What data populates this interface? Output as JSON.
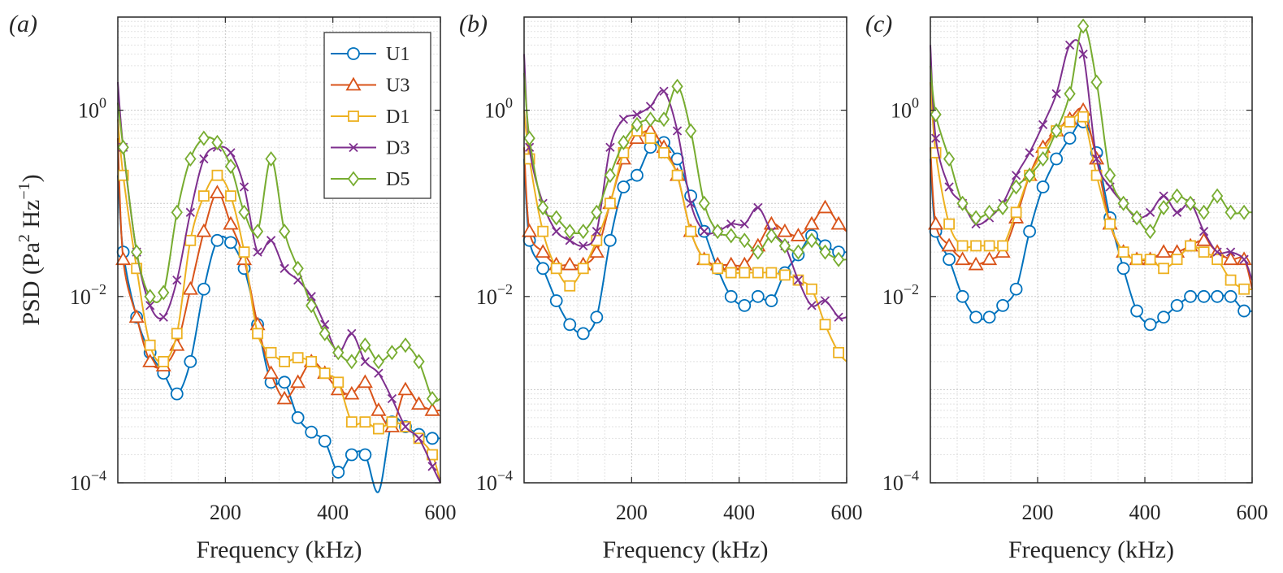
{
  "chart_data": {
    "type": "line",
    "yscale": "log",
    "ylabel": "PSD (Pa² Hz⁻¹)",
    "ylabel_parts": {
      "pre": "PSD (Pa",
      "sup1": "2",
      "mid": " Hz",
      "sup2": "−1",
      "post": ")"
    },
    "legend": [
      "U1",
      "U3",
      "D1",
      "D3",
      "D5"
    ],
    "colors": {
      "U1": "#0072BD",
      "U3": "#D95319",
      "D1": "#EDB120",
      "D3": "#7E2F8E",
      "D5": "#77AC30"
    },
    "markers": {
      "U1": "circle",
      "U3": "triangle",
      "D1": "square",
      "D3": "x",
      "D5": "diamond"
    },
    "x_marker_positions": [
      10,
      35,
      60,
      85,
      110,
      135,
      160,
      185,
      210,
      235,
      260,
      285,
      310,
      335,
      360,
      385,
      410,
      435,
      460,
      485,
      510,
      535,
      560,
      585
    ],
    "panels": [
      {
        "label": "(a)",
        "xlabel": "Frequency (kHz)",
        "xlim": [
          0,
          600
        ],
        "ylim": [
          0.0001,
          10
        ],
        "xticks": [
          "200",
          "400",
          "600"
        ],
        "yticks": [
          {
            "base": "10",
            "exp": "0"
          },
          {
            "base": "10",
            "exp": "−2"
          },
          {
            "base": "10",
            "exp": "−4"
          }
        ],
        "series": [
          {
            "name": "U1",
            "x": [
              0,
              10,
              35,
              60,
              85,
              110,
              135,
              160,
              185,
              210,
              235,
              260,
              285,
              310,
              335,
              360,
              385,
              410,
              435,
              460,
              485,
              510,
              535,
              560,
              585,
              600
            ],
            "y": [
              0.2,
              0.03,
              0.006,
              0.0025,
              0.0015,
              0.0009,
              0.002,
              0.012,
              0.04,
              0.038,
              0.02,
              0.005,
              0.0012,
              0.0012,
              0.0005,
              0.00035,
              0.00028,
              0.00013,
              0.0002,
              0.0002,
              8e-05,
              0.00045,
              0.0004,
              0.00033,
              0.0003,
              0.0003
            ]
          },
          {
            "name": "U3",
            "x": [
              0,
              10,
              35,
              60,
              85,
              110,
              135,
              160,
              185,
              210,
              235,
              260,
              285,
              310,
              335,
              360,
              385,
              410,
              435,
              460,
              485,
              510,
              535,
              560,
              585,
              600
            ],
            "y": [
              0.5,
              0.025,
              0.006,
              0.002,
              0.0018,
              0.003,
              0.012,
              0.05,
              0.13,
              0.06,
              0.025,
              0.005,
              0.0015,
              0.0008,
              0.0012,
              0.002,
              0.0015,
              0.001,
              0.0009,
              0.0012,
              0.0006,
              0.0004,
              0.001,
              0.0007,
              0.0006,
              0.0006
            ]
          },
          {
            "name": "D1",
            "x": [
              0,
              10,
              35,
              60,
              85,
              110,
              135,
              160,
              185,
              210,
              235,
              260,
              285,
              310,
              335,
              360,
              385,
              410,
              435,
              460,
              485,
              510,
              535,
              560,
              585,
              600
            ],
            "y": [
              0.8,
              0.2,
              0.02,
              0.003,
              0.002,
              0.004,
              0.04,
              0.12,
              0.2,
              0.12,
              0.03,
              0.004,
              0.0025,
              0.002,
              0.0022,
              0.002,
              0.0015,
              0.0012,
              0.00045,
              0.00045,
              0.00038,
              0.00045,
              0.0004,
              0.0003,
              0.0002,
              0.0001
            ]
          },
          {
            "name": "D3",
            "x": [
              0,
              10,
              35,
              60,
              85,
              110,
              135,
              160,
              185,
              210,
              235,
              260,
              285,
              310,
              335,
              360,
              385,
              410,
              435,
              460,
              485,
              510,
              535,
              560,
              585,
              600
            ],
            "y": [
              2.0,
              0.4,
              0.03,
              0.008,
              0.006,
              0.015,
              0.08,
              0.3,
              0.4,
              0.35,
              0.15,
              0.03,
              0.04,
              0.02,
              0.015,
              0.01,
              0.005,
              0.0025,
              0.004,
              0.002,
              0.0015,
              0.0008,
              0.0004,
              0.0003,
              0.00015,
              0.0001
            ]
          },
          {
            "name": "D5",
            "x": [
              0,
              10,
              35,
              60,
              85,
              110,
              135,
              160,
              185,
              210,
              235,
              260,
              285,
              310,
              335,
              360,
              385,
              410,
              435,
              460,
              485,
              510,
              535,
              560,
              585,
              600
            ],
            "y": [
              1.2,
              0.4,
              0.03,
              0.01,
              0.011,
              0.08,
              0.3,
              0.5,
              0.45,
              0.25,
              0.08,
              0.05,
              0.3,
              0.05,
              0.02,
              0.008,
              0.004,
              0.0025,
              0.002,
              0.003,
              0.002,
              0.0025,
              0.003,
              0.002,
              0.0008,
              0.0008
            ]
          }
        ]
      },
      {
        "label": "(b)",
        "xlabel": "Frequency (kHz)",
        "xlim": [
          0,
          600
        ],
        "ylim": [
          0.0001,
          10
        ],
        "xticks": [
          "200",
          "400",
          "600"
        ],
        "yticks": [
          {
            "base": "10",
            "exp": "0"
          },
          {
            "base": "10",
            "exp": "−2"
          },
          {
            "base": "10",
            "exp": "−4"
          }
        ],
        "series": [
          {
            "name": "U1",
            "x": [
              0,
              10,
              35,
              60,
              85,
              110,
              135,
              160,
              185,
              210,
              235,
              260,
              285,
              310,
              335,
              360,
              385,
              410,
              435,
              460,
              485,
              510,
              535,
              560,
              585,
              600
            ],
            "y": [
              0.3,
              0.04,
              0.02,
              0.009,
              0.005,
              0.004,
              0.006,
              0.04,
              0.15,
              0.2,
              0.4,
              0.45,
              0.3,
              0.12,
              0.05,
              0.02,
              0.01,
              0.008,
              0.01,
              0.009,
              0.018,
              0.028,
              0.045,
              0.035,
              0.03,
              0.03
            ]
          },
          {
            "name": "U3",
            "x": [
              0,
              10,
              35,
              60,
              85,
              110,
              135,
              160,
              185,
              210,
              235,
              260,
              285,
              310,
              335,
              360,
              385,
              410,
              435,
              460,
              485,
              510,
              535,
              560,
              585,
              600
            ],
            "y": [
              0.4,
              0.05,
              0.03,
              0.022,
              0.022,
              0.022,
              0.03,
              0.1,
              0.3,
              0.5,
              0.6,
              0.4,
              0.2,
              0.05,
              0.025,
              0.022,
              0.022,
              0.022,
              0.035,
              0.06,
              0.05,
              0.045,
              0.06,
              0.09,
              0.06,
              0.05
            ]
          },
          {
            "name": "D1",
            "x": [
              0,
              10,
              35,
              60,
              85,
              110,
              135,
              160,
              185,
              210,
              235,
              260,
              285,
              310,
              335,
              360,
              385,
              410,
              435,
              460,
              485,
              510,
              535,
              560,
              585,
              600
            ],
            "y": [
              1.0,
              0.3,
              0.05,
              0.02,
              0.013,
              0.02,
              0.04,
              0.1,
              0.35,
              0.6,
              0.5,
              0.35,
              0.2,
              0.05,
              0.025,
              0.02,
              0.018,
              0.018,
              0.018,
              0.018,
              0.017,
              0.015,
              0.012,
              0.005,
              0.0025,
              0.002
            ]
          },
          {
            "name": "D3",
            "x": [
              0,
              10,
              35,
              60,
              85,
              110,
              135,
              160,
              185,
              210,
              235,
              260,
              285,
              310,
              335,
              360,
              385,
              410,
              435,
              460,
              485,
              510,
              535,
              560,
              585,
              600
            ],
            "y": [
              4.0,
              0.4,
              0.1,
              0.05,
              0.04,
              0.035,
              0.05,
              0.4,
              0.8,
              0.9,
              1.1,
              1.6,
              0.6,
              0.1,
              0.05,
              0.05,
              0.06,
              0.06,
              0.09,
              0.05,
              0.035,
              0.015,
              0.008,
              0.009,
              0.006,
              0.006
            ]
          },
          {
            "name": "D5",
            "x": [
              0,
              10,
              35,
              60,
              85,
              110,
              135,
              160,
              185,
              210,
              235,
              260,
              285,
              310,
              335,
              360,
              385,
              410,
              435,
              460,
              485,
              510,
              535,
              560,
              585,
              600
            ],
            "y": [
              2.5,
              0.5,
              0.09,
              0.07,
              0.05,
              0.05,
              0.08,
              0.2,
              0.45,
              0.7,
              0.8,
              0.8,
              1.8,
              0.6,
              0.1,
              0.05,
              0.045,
              0.04,
              0.03,
              0.045,
              0.035,
              0.03,
              0.04,
              0.03,
              0.025,
              0.025
            ]
          }
        ]
      },
      {
        "label": "(c)",
        "xlabel": "Frequency (kHz)",
        "xlim": [
          0,
          600
        ],
        "ylim": [
          0.0001,
          10
        ],
        "xticks": [
          "200",
          "400",
          "600"
        ],
        "yticks": [
          {
            "base": "10",
            "exp": "0"
          },
          {
            "base": "10",
            "exp": "−2"
          },
          {
            "base": "10",
            "exp": "−4"
          }
        ],
        "series": [
          {
            "name": "U1",
            "x": [
              0,
              10,
              35,
              60,
              85,
              110,
              135,
              160,
              185,
              210,
              235,
              260,
              285,
              310,
              335,
              360,
              385,
              410,
              435,
              460,
              485,
              510,
              535,
              560,
              585,
              600
            ],
            "y": [
              0.3,
              0.05,
              0.025,
              0.01,
              0.006,
              0.006,
              0.008,
              0.012,
              0.05,
              0.15,
              0.3,
              0.5,
              0.75,
              0.35,
              0.07,
              0.02,
              0.007,
              0.005,
              0.006,
              0.008,
              0.01,
              0.01,
              0.01,
              0.01,
              0.007,
              0.007
            ]
          },
          {
            "name": "U3",
            "x": [
              0,
              10,
              35,
              60,
              85,
              110,
              135,
              160,
              185,
              210,
              235,
              260,
              285,
              310,
              335,
              360,
              385,
              410,
              435,
              460,
              485,
              510,
              535,
              560,
              585,
              600
            ],
            "y": [
              0.4,
              0.06,
              0.035,
              0.025,
              0.022,
              0.025,
              0.03,
              0.07,
              0.2,
              0.4,
              0.6,
              0.8,
              1.0,
              0.3,
              0.06,
              0.03,
              0.025,
              0.025,
              0.03,
              0.03,
              0.035,
              0.04,
              0.03,
              0.025,
              0.025,
              0.012
            ]
          },
          {
            "name": "D1",
            "x": [
              0,
              10,
              35,
              60,
              85,
              110,
              135,
              160,
              185,
              210,
              235,
              260,
              285,
              310,
              335,
              360,
              385,
              410,
              435,
              460,
              485,
              510,
              535,
              560,
              585,
              600
            ],
            "y": [
              2.0,
              0.35,
              0.06,
              0.035,
              0.035,
              0.035,
              0.035,
              0.08,
              0.2,
              0.35,
              0.6,
              0.75,
              0.85,
              0.2,
              0.06,
              0.03,
              0.025,
              0.025,
              0.02,
              0.025,
              0.035,
              0.03,
              0.025,
              0.015,
              0.012,
              0.012
            ]
          },
          {
            "name": "D3",
            "x": [
              0,
              10,
              35,
              60,
              85,
              110,
              135,
              160,
              185,
              210,
              235,
              260,
              285,
              310,
              335,
              360,
              385,
              410,
              435,
              460,
              485,
              510,
              535,
              560,
              585,
              600
            ],
            "y": [
              5.0,
              0.5,
              0.15,
              0.1,
              0.06,
              0.07,
              0.1,
              0.2,
              0.35,
              0.7,
              1.5,
              5.0,
              4.0,
              0.3,
              0.15,
              0.1,
              0.07,
              0.08,
              0.12,
              0.08,
              0.1,
              0.05,
              0.03,
              0.03,
              0.025,
              0.015
            ]
          },
          {
            "name": "D5",
            "x": [
              0,
              10,
              35,
              60,
              85,
              110,
              135,
              160,
              185,
              210,
              235,
              260,
              285,
              310,
              335,
              360,
              385,
              410,
              435,
              460,
              485,
              510,
              535,
              560,
              585,
              600
            ],
            "y": [
              3.0,
              0.9,
              0.3,
              0.1,
              0.07,
              0.08,
              0.09,
              0.15,
              0.2,
              0.3,
              0.6,
              1.5,
              8.0,
              2.0,
              0.2,
              0.1,
              0.07,
              0.05,
              0.09,
              0.12,
              0.1,
              0.08,
              0.12,
              0.08,
              0.08,
              0.08
            ]
          }
        ]
      }
    ]
  }
}
